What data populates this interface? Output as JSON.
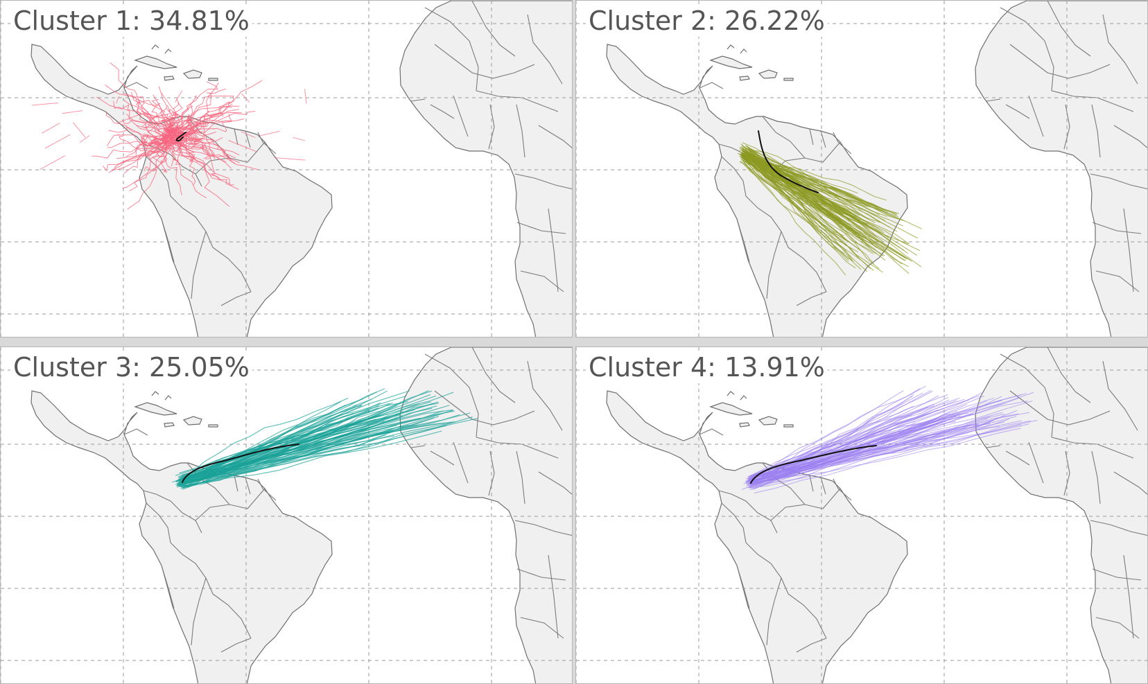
{
  "figure": {
    "panels": [
      {
        "title": "Cluster 1: 34.81%",
        "color": "#f7657e",
        "shape": "local"
      },
      {
        "title": "Cluster 2: 26.22%",
        "color": "#8c9a22",
        "shape": "southeast"
      },
      {
        "title": "Cluster 3: 25.05%",
        "color": "#1ba398",
        "shape": "east"
      },
      {
        "title": "Cluster 4: 13.91%",
        "color": "#9b80f0",
        "shape": "east"
      }
    ],
    "map_colors": {
      "land": "#f0f0f0",
      "border": "#6e6e6e",
      "grid": "#9a9a9a",
      "centroid": "#111111"
    }
  }
}
